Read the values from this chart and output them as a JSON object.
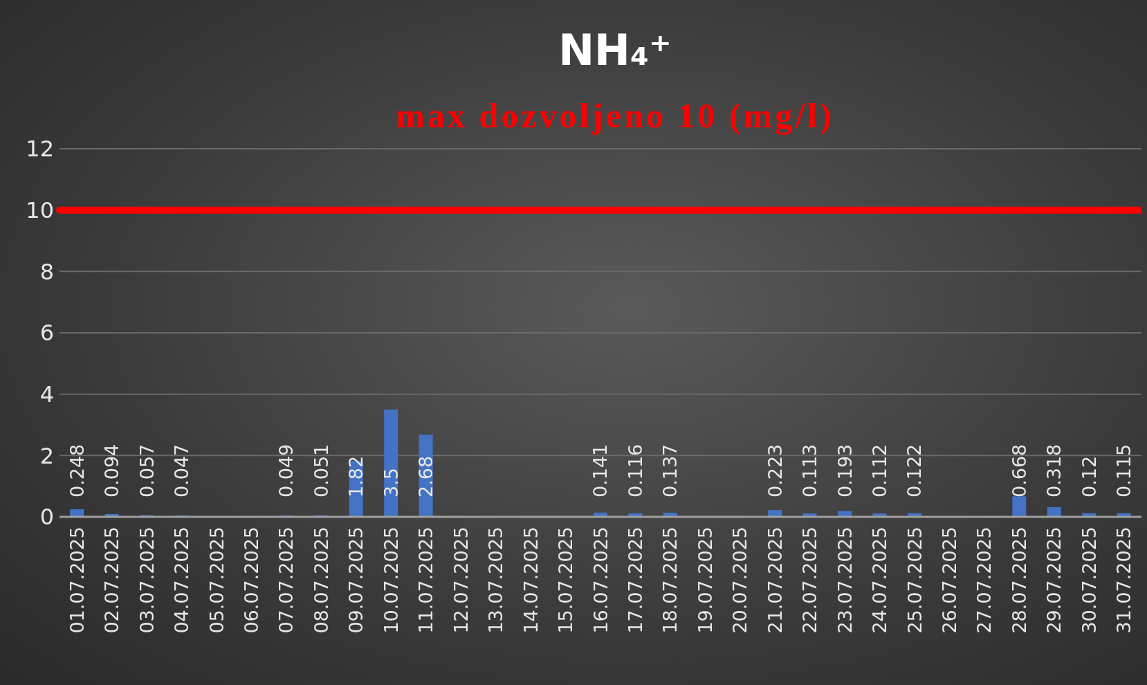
{
  "chart_data": {
    "type": "bar",
    "title": "NH₄⁺",
    "subtitle": "max dozvoljeno 10 (mg/l)",
    "categories": [
      "01.07.2025",
      "02.07.2025",
      "03.07.2025",
      "04.07.2025",
      "05.07.2025",
      "06.07.2025",
      "07.07.2025",
      "08.07.2025",
      "09.07.2025",
      "10.07.2025",
      "11.07.2025",
      "12.07.2025",
      "13.07.2025",
      "14.07.2025",
      "15.07.2025",
      "16.07.2025",
      "17.07.2025",
      "18.07.2025",
      "19.07.2025",
      "20.07.2025",
      "21.07.2025",
      "22.07.2025",
      "23.07.2025",
      "24.07.2025",
      "25.07.2025",
      "26.07.2025",
      "27.07.2025",
      "28.07.2025",
      "29.07.2025",
      "30.07.2025",
      "31.07.2025"
    ],
    "values": [
      0.248,
      0.094,
      0.057,
      0.047,
      null,
      null,
      0.049,
      0.051,
      1.82,
      3.5,
      2.68,
      null,
      null,
      null,
      null,
      0.141,
      0.116,
      0.137,
      null,
      null,
      0.223,
      0.113,
      0.193,
      0.112,
      0.122,
      null,
      null,
      0.668,
      0.318,
      0.12,
      0.115
    ],
    "color": "#4472c4",
    "ylim": [
      0,
      12
    ],
    "yticks": [
      0,
      2,
      4,
      6,
      8,
      10,
      12
    ],
    "grid": "y",
    "data_labels": true,
    "ref_lines": [
      {
        "axis": "y",
        "value": 10,
        "color": "#ff0000"
      }
    ]
  }
}
